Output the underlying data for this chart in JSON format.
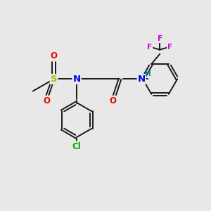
{
  "background_color": "#e8e8e8",
  "bond_color": "#1a1a1a",
  "atom_colors": {
    "S": "#b8b800",
    "N": "#0000ee",
    "O": "#ee0000",
    "Cl": "#00aa00",
    "F": "#dd00dd",
    "H": "#008888",
    "C": "#1a1a1a"
  },
  "font_size": 8.5,
  "fig_size": [
    3.0,
    3.0
  ],
  "dpi": 100
}
